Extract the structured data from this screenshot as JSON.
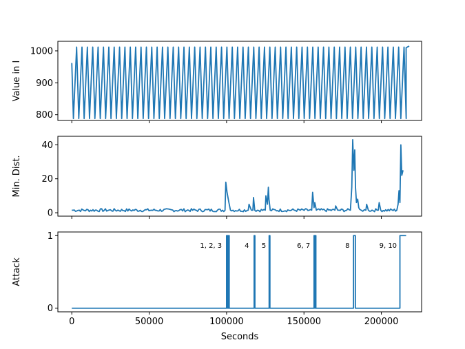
{
  "chart_data": [
    {
      "type": "line",
      "ylabel": "Value in I",
      "xlim": [
        -9000,
        226000
      ],
      "ylim": [
        782,
        1030
      ],
      "yticks": [
        800,
        900,
        1000
      ],
      "yticklabels": [
        "800",
        "900",
        "1000"
      ],
      "shared_xticks": [
        0,
        50000,
        100000,
        150000,
        200000
      ],
      "show_xticklabels": false,
      "grid": false,
      "color": "#1f77b4",
      "series": [
        {
          "pattern": "sawtooth",
          "x": [
            0,
            218000
          ],
          "cycles": 62,
          "peak": 1012,
          "trough": 788,
          "first_value": 962,
          "final_value": 1015
        }
      ]
    },
    {
      "type": "line",
      "ylabel": "Min. Dist.",
      "xlim": [
        -9000,
        226000
      ],
      "ylim": [
        -2,
        45
      ],
      "yticks": [
        0,
        20,
        40
      ],
      "yticklabels": [
        "0",
        "20",
        "40"
      ],
      "shared_xticks": [
        0,
        50000,
        100000,
        150000,
        200000
      ],
      "show_xticklabels": false,
      "grid": false,
      "color": "#1f77b4",
      "series": [
        {
          "baseline": 1.5,
          "x": [
            0,
            99000,
            99500,
            100300,
            101500,
            102500,
            114000,
            114500,
            116000,
            117000,
            117400,
            118200,
            125000,
            125400,
            126400,
            127000,
            127400,
            128200,
            155000,
            155600,
            156500,
            157000,
            158000,
            170000,
            170500,
            171800,
            180000,
            180900,
            181500,
            182200,
            182800,
            183300,
            183900,
            184700,
            185400,
            186000,
            187000,
            190000,
            190500,
            191600,
            198000,
            198600,
            199600,
            210000,
            210800,
            211400,
            212000,
            212600,
            213200,
            214000
          ],
          "y": [
            1.5,
            1.5,
            18,
            12,
            6,
            1.5,
            1.5,
            5,
            1.5,
            1.5,
            9,
            1.5,
            1.5,
            10,
            5,
            15,
            8,
            1.5,
            1.5,
            12,
            3,
            6,
            1.5,
            1.5,
            4,
            1.5,
            1.5,
            15,
            43,
            25,
            37,
            15,
            6,
            8,
            3,
            2,
            1.5,
            1.5,
            5,
            1.5,
            1.5,
            6,
            1.5,
            1.5,
            5,
            13,
            6,
            40,
            22,
            25
          ]
        }
      ]
    },
    {
      "type": "line",
      "ylabel": "Attack",
      "xlabel": "Seconds",
      "xlim": [
        -9000,
        226000
      ],
      "ylim": [
        -0.05,
        1.05
      ],
      "yticks": [
        0,
        1
      ],
      "yticklabels": [
        "0",
        "1"
      ],
      "xticks": [
        0,
        50000,
        100000,
        150000,
        200000
      ],
      "xticklabels": [
        "0",
        "50000",
        "100000",
        "150000",
        "200000"
      ],
      "grid": false,
      "color": "#1f77b4",
      "series": [
        {
          "attack_intervals": [
            [
              100000,
              100400
            ],
            [
              100650,
              101000
            ],
            [
              101300,
              101700
            ],
            [
              117800,
              118300
            ],
            [
              127500,
              128000
            ],
            [
              156500,
              157000
            ],
            [
              157200,
              157700
            ],
            [
              182000,
              183200
            ],
            [
              212000,
              216000
            ]
          ],
          "x_end": 216000
        }
      ],
      "annotations": [
        {
          "text": "1, 2, 3",
          "x": 97000,
          "y": 0.86
        },
        {
          "text": "4",
          "x": 114500,
          "y": 0.86
        },
        {
          "text": "5",
          "x": 125500,
          "y": 0.86
        },
        {
          "text": "6, 7",
          "x": 154000,
          "y": 0.86
        },
        {
          "text": "8",
          "x": 179500,
          "y": 0.86
        },
        {
          "text": "9, 10",
          "x": 210000,
          "y": 0.86
        }
      ]
    }
  ]
}
